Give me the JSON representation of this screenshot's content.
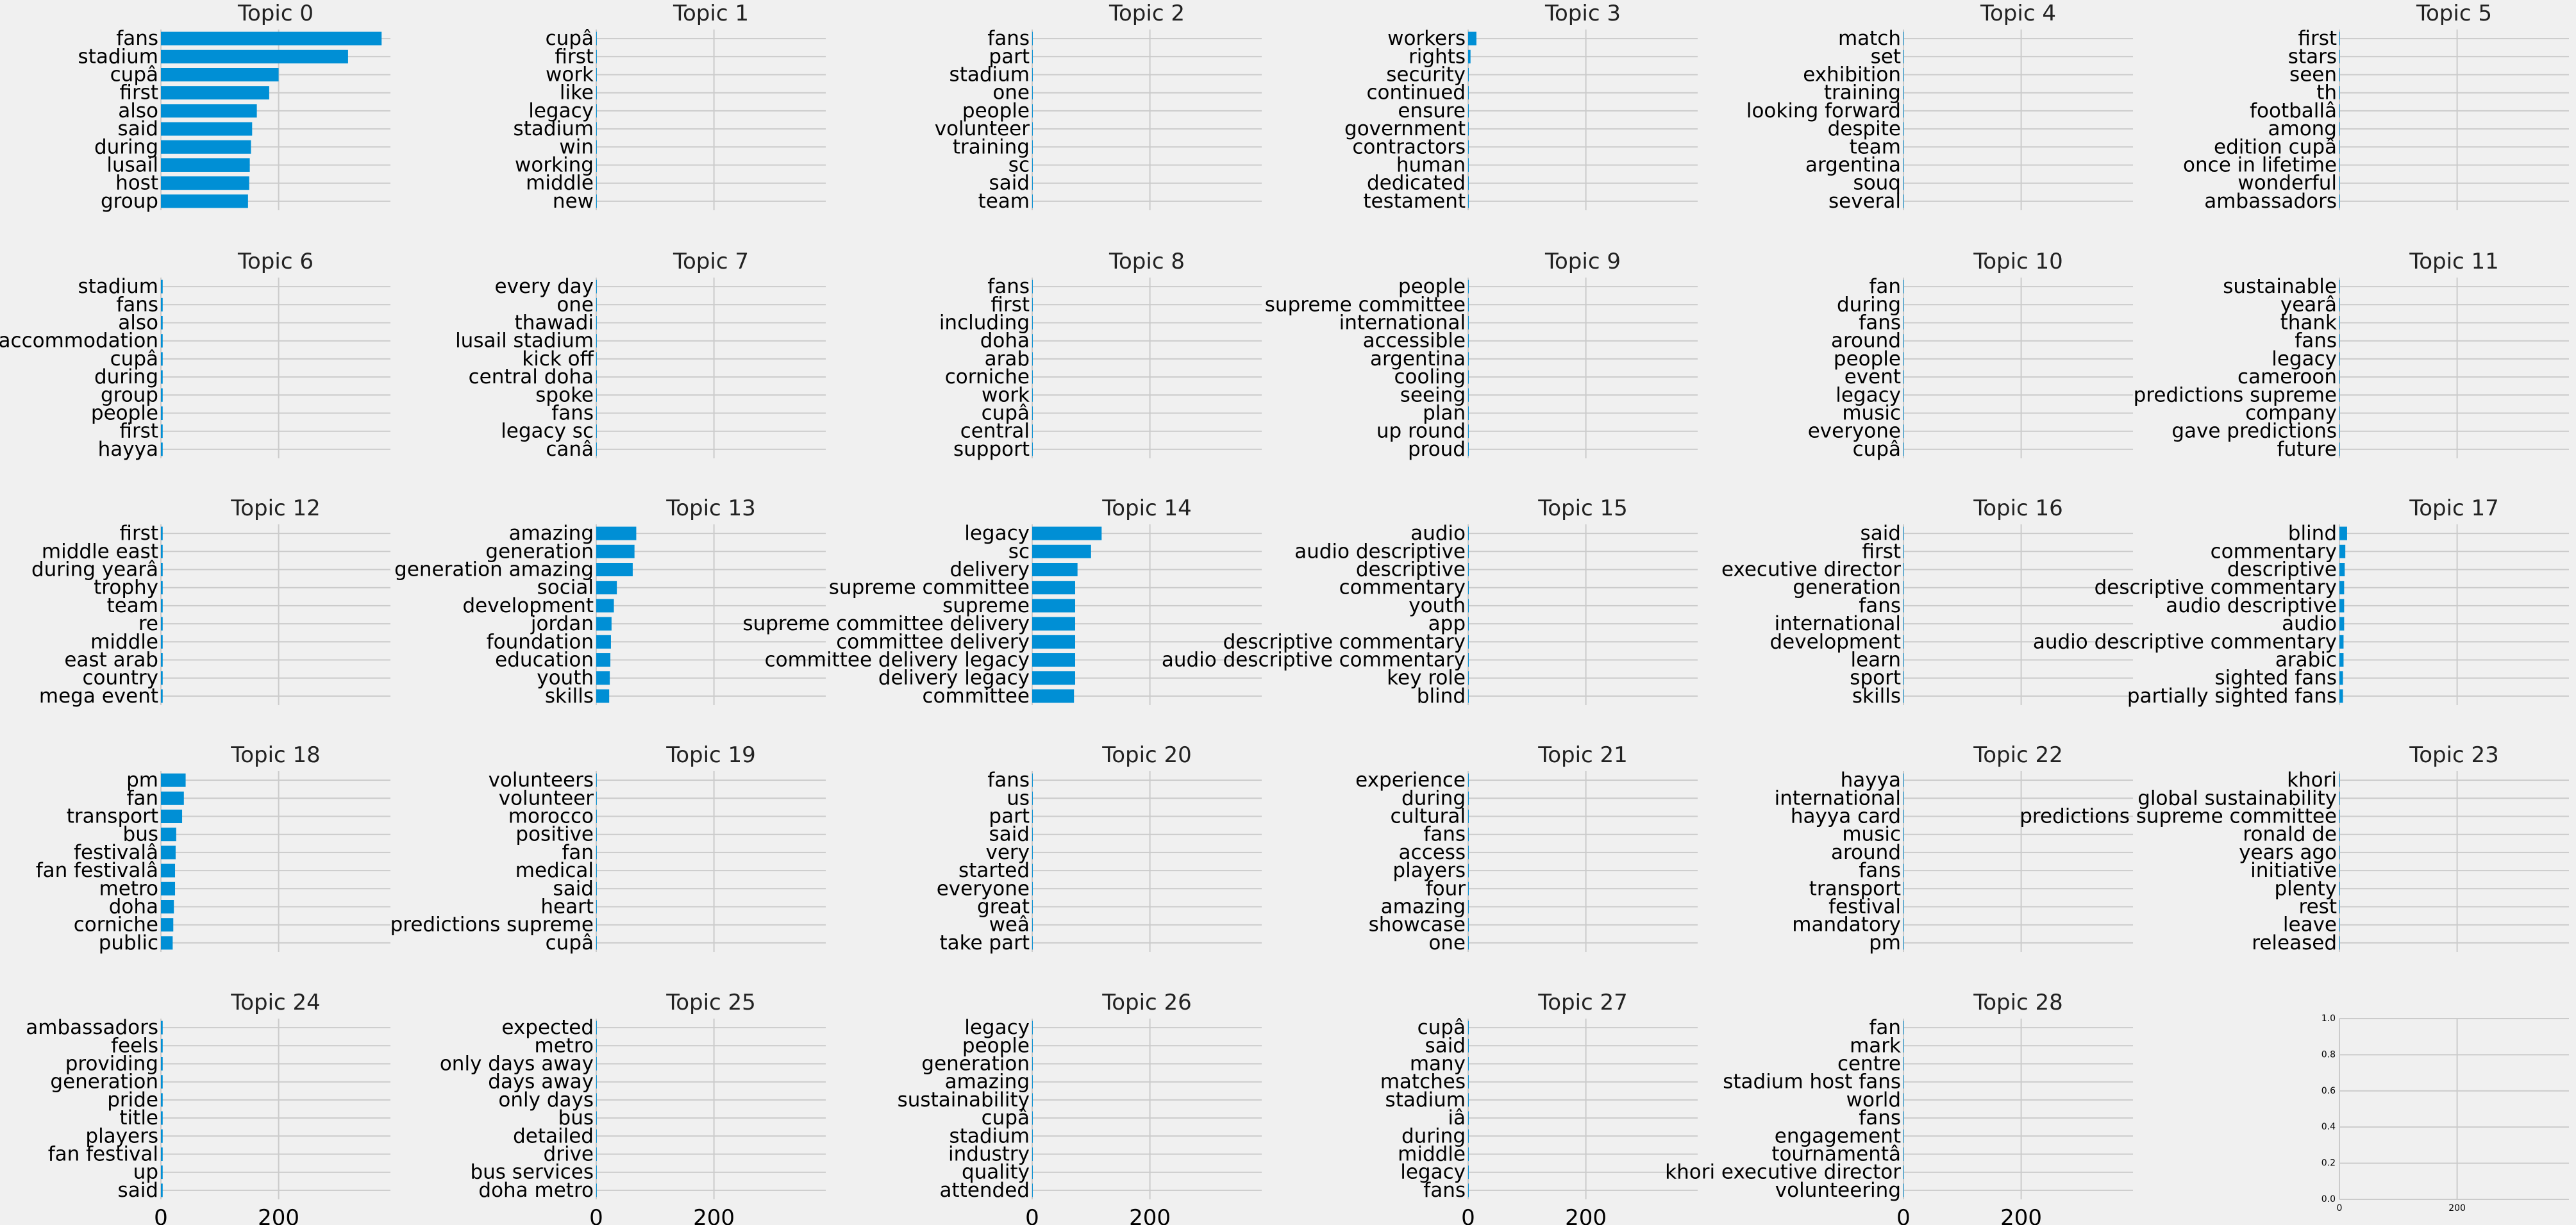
{
  "figure": {
    "background": "#f0f0f0",
    "bar_color": "#008fd5",
    "grid_color": "#cbcbcb",
    "xlim": [
      0,
      390
    ],
    "xticks": [
      0,
      200
    ],
    "xtick_labels": [
      "0",
      "200"
    ],
    "empty_axis": {
      "xticks": [
        0,
        200
      ],
      "xtick_labels": [
        "0",
        "200"
      ],
      "yticks": [
        0.0,
        0.2,
        0.4,
        0.6,
        0.8,
        1.0
      ],
      "ytick_labels": [
        "0.0",
        "0.2",
        "0.4",
        "0.6",
        "0.8",
        "1.0"
      ]
    }
  },
  "chart_data": [
    {
      "type": "bar",
      "orientation": "horizontal",
      "title": "Topic 0",
      "categories": [
        "fans",
        "stadium",
        "cupâ",
        "first",
        "also",
        "said",
        "during",
        "lusail",
        "host",
        "group"
      ],
      "values": [
        375,
        318,
        200,
        184,
        163,
        155,
        153,
        151,
        150,
        148
      ],
      "xlim": [
        0,
        390
      ],
      "grid": true
    },
    {
      "type": "bar",
      "orientation": "horizontal",
      "title": "Topic 1",
      "categories": [
        "cupâ",
        "first",
        "work",
        "like",
        "legacy",
        "stadium",
        "win",
        "working",
        "middle",
        "new"
      ],
      "values": [
        1,
        1,
        1,
        1,
        1,
        1,
        1,
        1,
        1,
        1
      ],
      "xlim": [
        0,
        390
      ],
      "grid": true
    },
    {
      "type": "bar",
      "orientation": "horizontal",
      "title": "Topic 2",
      "categories": [
        "fans",
        "part",
        "stadium",
        "one",
        "people",
        "volunteer",
        "training",
        "sc",
        "said",
        "team"
      ],
      "values": [
        1,
        1,
        1,
        1,
        1,
        1,
        1,
        1,
        1,
        1
      ],
      "xlim": [
        0,
        390
      ],
      "grid": true
    },
    {
      "type": "bar",
      "orientation": "horizontal",
      "title": "Topic 3",
      "categories": [
        "workers",
        "rights",
        "security",
        "continued",
        "ensure",
        "government",
        "contractors",
        "human",
        "dedicated",
        "testament"
      ],
      "values": [
        14,
        4,
        1,
        1,
        1,
        1,
        1,
        1,
        1,
        1
      ],
      "xlim": [
        0,
        390
      ],
      "grid": true
    },
    {
      "type": "bar",
      "orientation": "horizontal",
      "title": "Topic 4",
      "categories": [
        "match",
        "set",
        "exhibition",
        "training",
        "looking forward",
        "despite",
        "team",
        "argentina",
        "souq",
        "several"
      ],
      "values": [
        1,
        1,
        1,
        1,
        1,
        1,
        1,
        1,
        1,
        1
      ],
      "xlim": [
        0,
        390
      ],
      "grid": true
    },
    {
      "type": "bar",
      "orientation": "horizontal",
      "title": "Topic 5",
      "categories": [
        "first",
        "stars",
        "seen",
        "th",
        "footballâ",
        "among",
        "edition cupâ",
        "once in lifetime",
        "wonderful",
        "ambassadors"
      ],
      "values": [
        1,
        1,
        1,
        1,
        1,
        1,
        1,
        1,
        1,
        1
      ],
      "xlim": [
        0,
        390
      ],
      "grid": true
    },
    {
      "type": "bar",
      "orientation": "horizontal",
      "title": "Topic 6",
      "categories": [
        "stadium",
        "fans",
        "also",
        "accommodation",
        "cupâ",
        "during",
        "group",
        "people",
        "first",
        "hayya"
      ],
      "values": [
        3,
        3,
        3,
        3,
        3,
        3,
        3,
        3,
        3,
        3
      ],
      "xlim": [
        0,
        390
      ],
      "grid": true
    },
    {
      "type": "bar",
      "orientation": "horizontal",
      "title": "Topic 7",
      "categories": [
        "every day",
        "one",
        "thawadi",
        "lusail stadium",
        "kick off",
        "central doha",
        "spoke",
        "fans",
        "legacy sc",
        "canâ"
      ],
      "values": [
        1,
        1,
        1,
        1,
        1,
        1,
        1,
        1,
        1,
        1
      ],
      "xlim": [
        0,
        390
      ],
      "grid": true
    },
    {
      "type": "bar",
      "orientation": "horizontal",
      "title": "Topic 8",
      "categories": [
        "fans",
        "first",
        "including",
        "doha",
        "arab",
        "corniche",
        "work",
        "cupâ",
        "central",
        "support"
      ],
      "values": [
        1,
        1,
        1,
        1,
        1,
        1,
        1,
        1,
        1,
        1
      ],
      "xlim": [
        0,
        390
      ],
      "grid": true
    },
    {
      "type": "bar",
      "orientation": "horizontal",
      "title": "Topic 9",
      "categories": [
        "people",
        "supreme committee",
        "international",
        "accessible",
        "argentina",
        "cooling",
        "seeing",
        "plan",
        "up round",
        "proud"
      ],
      "values": [
        1,
        1,
        1,
        1,
        1,
        1,
        1,
        1,
        1,
        1
      ],
      "xlim": [
        0,
        390
      ],
      "grid": true
    },
    {
      "type": "bar",
      "orientation": "horizontal",
      "title": "Topic 10",
      "categories": [
        "fan",
        "during",
        "fans",
        "around",
        "people",
        "event",
        "legacy",
        "music",
        "everyone",
        "cupâ"
      ],
      "values": [
        1,
        1,
        1,
        1,
        1,
        1,
        1,
        1,
        1,
        1
      ],
      "xlim": [
        0,
        390
      ],
      "grid": true
    },
    {
      "type": "bar",
      "orientation": "horizontal",
      "title": "Topic 11",
      "categories": [
        "sustainable",
        "yearâ",
        "thank",
        "fans",
        "legacy",
        "cameroon",
        "predictions supreme",
        "company",
        "gave predictions",
        "future"
      ],
      "values": [
        1,
        1,
        1,
        1,
        1,
        1,
        1,
        1,
        1,
        1
      ],
      "xlim": [
        0,
        390
      ],
      "grid": true
    },
    {
      "type": "bar",
      "orientation": "horizontal",
      "title": "Topic 12",
      "categories": [
        "first",
        "middle east",
        "during yearâ",
        "trophy",
        "team",
        "re",
        "middle",
        "east arab",
        "country",
        "mega event"
      ],
      "values": [
        3,
        3,
        3,
        3,
        3,
        3,
        3,
        3,
        3,
        3
      ],
      "xlim": [
        0,
        390
      ],
      "grid": true
    },
    {
      "type": "bar",
      "orientation": "horizontal",
      "title": "Topic 13",
      "categories": [
        "amazing",
        "generation",
        "generation amazing",
        "social",
        "development",
        "jordan",
        "foundation",
        "education",
        "youth",
        "skills"
      ],
      "values": [
        68,
        65,
        62,
        35,
        30,
        26,
        25,
        24,
        23,
        22
      ],
      "xlim": [
        0,
        390
      ],
      "grid": true
    },
    {
      "type": "bar",
      "orientation": "horizontal",
      "title": "Topic 14",
      "categories": [
        "legacy",
        "sc",
        "delivery",
        "supreme committee",
        "supreme",
        "supreme committee delivery",
        "committee delivery",
        "committee delivery legacy",
        "delivery legacy",
        "committee"
      ],
      "values": [
        118,
        100,
        77,
        73,
        73,
        73,
        73,
        73,
        73,
        71
      ],
      "xlim": [
        0,
        390
      ],
      "grid": true
    },
    {
      "type": "bar",
      "orientation": "horizontal",
      "title": "Topic 15",
      "categories": [
        "audio",
        "audio descriptive",
        "descriptive",
        "commentary",
        "youth",
        "app",
        "descriptive commentary",
        "audio descriptive commentary",
        "key role",
        "blind"
      ],
      "values": [
        1,
        1,
        1,
        1,
        1,
        1,
        1,
        1,
        1,
        1
      ],
      "xlim": [
        0,
        390
      ],
      "grid": true
    },
    {
      "type": "bar",
      "orientation": "horizontal",
      "title": "Topic 16",
      "categories": [
        "said",
        "first",
        "executive director",
        "generation",
        "fans",
        "international",
        "development",
        "learn",
        "sport",
        "skills"
      ],
      "values": [
        1,
        1,
        1,
        1,
        1,
        1,
        1,
        1,
        1,
        1
      ],
      "xlim": [
        0,
        390
      ],
      "grid": true
    },
    {
      "type": "bar",
      "orientation": "horizontal",
      "title": "Topic 17",
      "categories": [
        "blind",
        "commentary",
        "descriptive",
        "descriptive commentary",
        "audio descriptive",
        "audio",
        "audio descriptive commentary",
        "arabic",
        "sighted fans",
        "partially sighted fans"
      ],
      "values": [
        13,
        10,
        9,
        8,
        8,
        8,
        7,
        7,
        6,
        6
      ],
      "xlim": [
        0,
        390
      ],
      "grid": true
    },
    {
      "type": "bar",
      "orientation": "horizontal",
      "title": "Topic 18",
      "categories": [
        "pm",
        "fan",
        "transport",
        "bus",
        "festivalâ",
        "fan festivalâ",
        "metro",
        "doha",
        "corniche",
        "public"
      ],
      "values": [
        42,
        39,
        36,
        26,
        25,
        24,
        24,
        22,
        21,
        20
      ],
      "xlim": [
        0,
        390
      ],
      "grid": true
    },
    {
      "type": "bar",
      "orientation": "horizontal",
      "title": "Topic 19",
      "categories": [
        "volunteers",
        "volunteer",
        "morocco",
        "positive",
        "fan",
        "medical",
        "said",
        "heart",
        "predictions supreme",
        "cupâ"
      ],
      "values": [
        1,
        1,
        1,
        1,
        1,
        1,
        1,
        1,
        1,
        1
      ],
      "xlim": [
        0,
        390
      ],
      "grid": true
    },
    {
      "type": "bar",
      "orientation": "horizontal",
      "title": "Topic 20",
      "categories": [
        "fans",
        "us",
        "part",
        "said",
        "very",
        "started",
        "everyone",
        "great",
        "weâ",
        "take part"
      ],
      "values": [
        1,
        1,
        1,
        1,
        1,
        1,
        1,
        1,
        1,
        1
      ],
      "xlim": [
        0,
        390
      ],
      "grid": true
    },
    {
      "type": "bar",
      "orientation": "horizontal",
      "title": "Topic 21",
      "categories": [
        "experience",
        "during",
        "cultural",
        "fans",
        "access",
        "players",
        "four",
        "amazing",
        "showcase",
        "one"
      ],
      "values": [
        1,
        1,
        1,
        1,
        1,
        1,
        1,
        1,
        1,
        1
      ],
      "xlim": [
        0,
        390
      ],
      "grid": true
    },
    {
      "type": "bar",
      "orientation": "horizontal",
      "title": "Topic 22",
      "categories": [
        "hayya",
        "international",
        "hayya card",
        "music",
        "around",
        "fans",
        "transport",
        "festival",
        "mandatory",
        "pm"
      ],
      "values": [
        1,
        1,
        1,
        1,
        1,
        1,
        1,
        1,
        1,
        1
      ],
      "xlim": [
        0,
        390
      ],
      "grid": true
    },
    {
      "type": "bar",
      "orientation": "horizontal",
      "title": "Topic 23",
      "categories": [
        "khori",
        "global sustainability",
        "predictions supreme committee",
        "ronald de",
        "years ago",
        "initiative",
        "plenty",
        "rest",
        "leave",
        "released"
      ],
      "values": [
        1,
        1,
        1,
        1,
        1,
        1,
        1,
        1,
        1,
        1
      ],
      "xlim": [
        0,
        390
      ],
      "grid": true
    },
    {
      "type": "bar",
      "orientation": "horizontal",
      "title": "Topic 24",
      "categories": [
        "ambassadors",
        "feels",
        "providing",
        "generation",
        "pride",
        "title",
        "players",
        "fan festival",
        "up",
        "said"
      ],
      "values": [
        3,
        3,
        3,
        3,
        3,
        3,
        3,
        3,
        3,
        3
      ],
      "xlim": [
        0,
        390
      ],
      "grid": true
    },
    {
      "type": "bar",
      "orientation": "horizontal",
      "title": "Topic 25",
      "categories": [
        "expected",
        "metro",
        "only days away",
        "days away",
        "only days",
        "bus",
        "detailed",
        "drive",
        "bus services",
        "doha metro"
      ],
      "values": [
        1,
        1,
        1,
        1,
        1,
        1,
        1,
        1,
        1,
        1
      ],
      "xlim": [
        0,
        390
      ],
      "grid": true
    },
    {
      "type": "bar",
      "orientation": "horizontal",
      "title": "Topic 26",
      "categories": [
        "legacy",
        "people",
        "generation",
        "amazing",
        "sustainability",
        "cupâ",
        "stadium",
        "industry",
        "quality",
        "attended"
      ],
      "values": [
        1,
        1,
        1,
        1,
        1,
        1,
        1,
        1,
        1,
        1
      ],
      "xlim": [
        0,
        390
      ],
      "grid": true
    },
    {
      "type": "bar",
      "orientation": "horizontal",
      "title": "Topic 27",
      "categories": [
        "cupâ",
        "said",
        "many",
        "matches",
        "stadium",
        "iâ",
        "during",
        "middle",
        "legacy",
        "fans"
      ],
      "values": [
        1,
        1,
        1,
        1,
        1,
        1,
        1,
        1,
        1,
        1
      ],
      "xlim": [
        0,
        390
      ],
      "grid": true
    },
    {
      "type": "bar",
      "orientation": "horizontal",
      "title": "Topic 28",
      "categories": [
        "fan",
        "mark",
        "centre",
        "stadium host fans",
        "world",
        "fans",
        "engagement",
        "tournamentâ",
        "khori executive director",
        "volunteering"
      ],
      "values": [
        1,
        1,
        1,
        1,
        1,
        1,
        1,
        1,
        1,
        1
      ],
      "xlim": [
        0,
        390
      ],
      "grid": true
    }
  ]
}
